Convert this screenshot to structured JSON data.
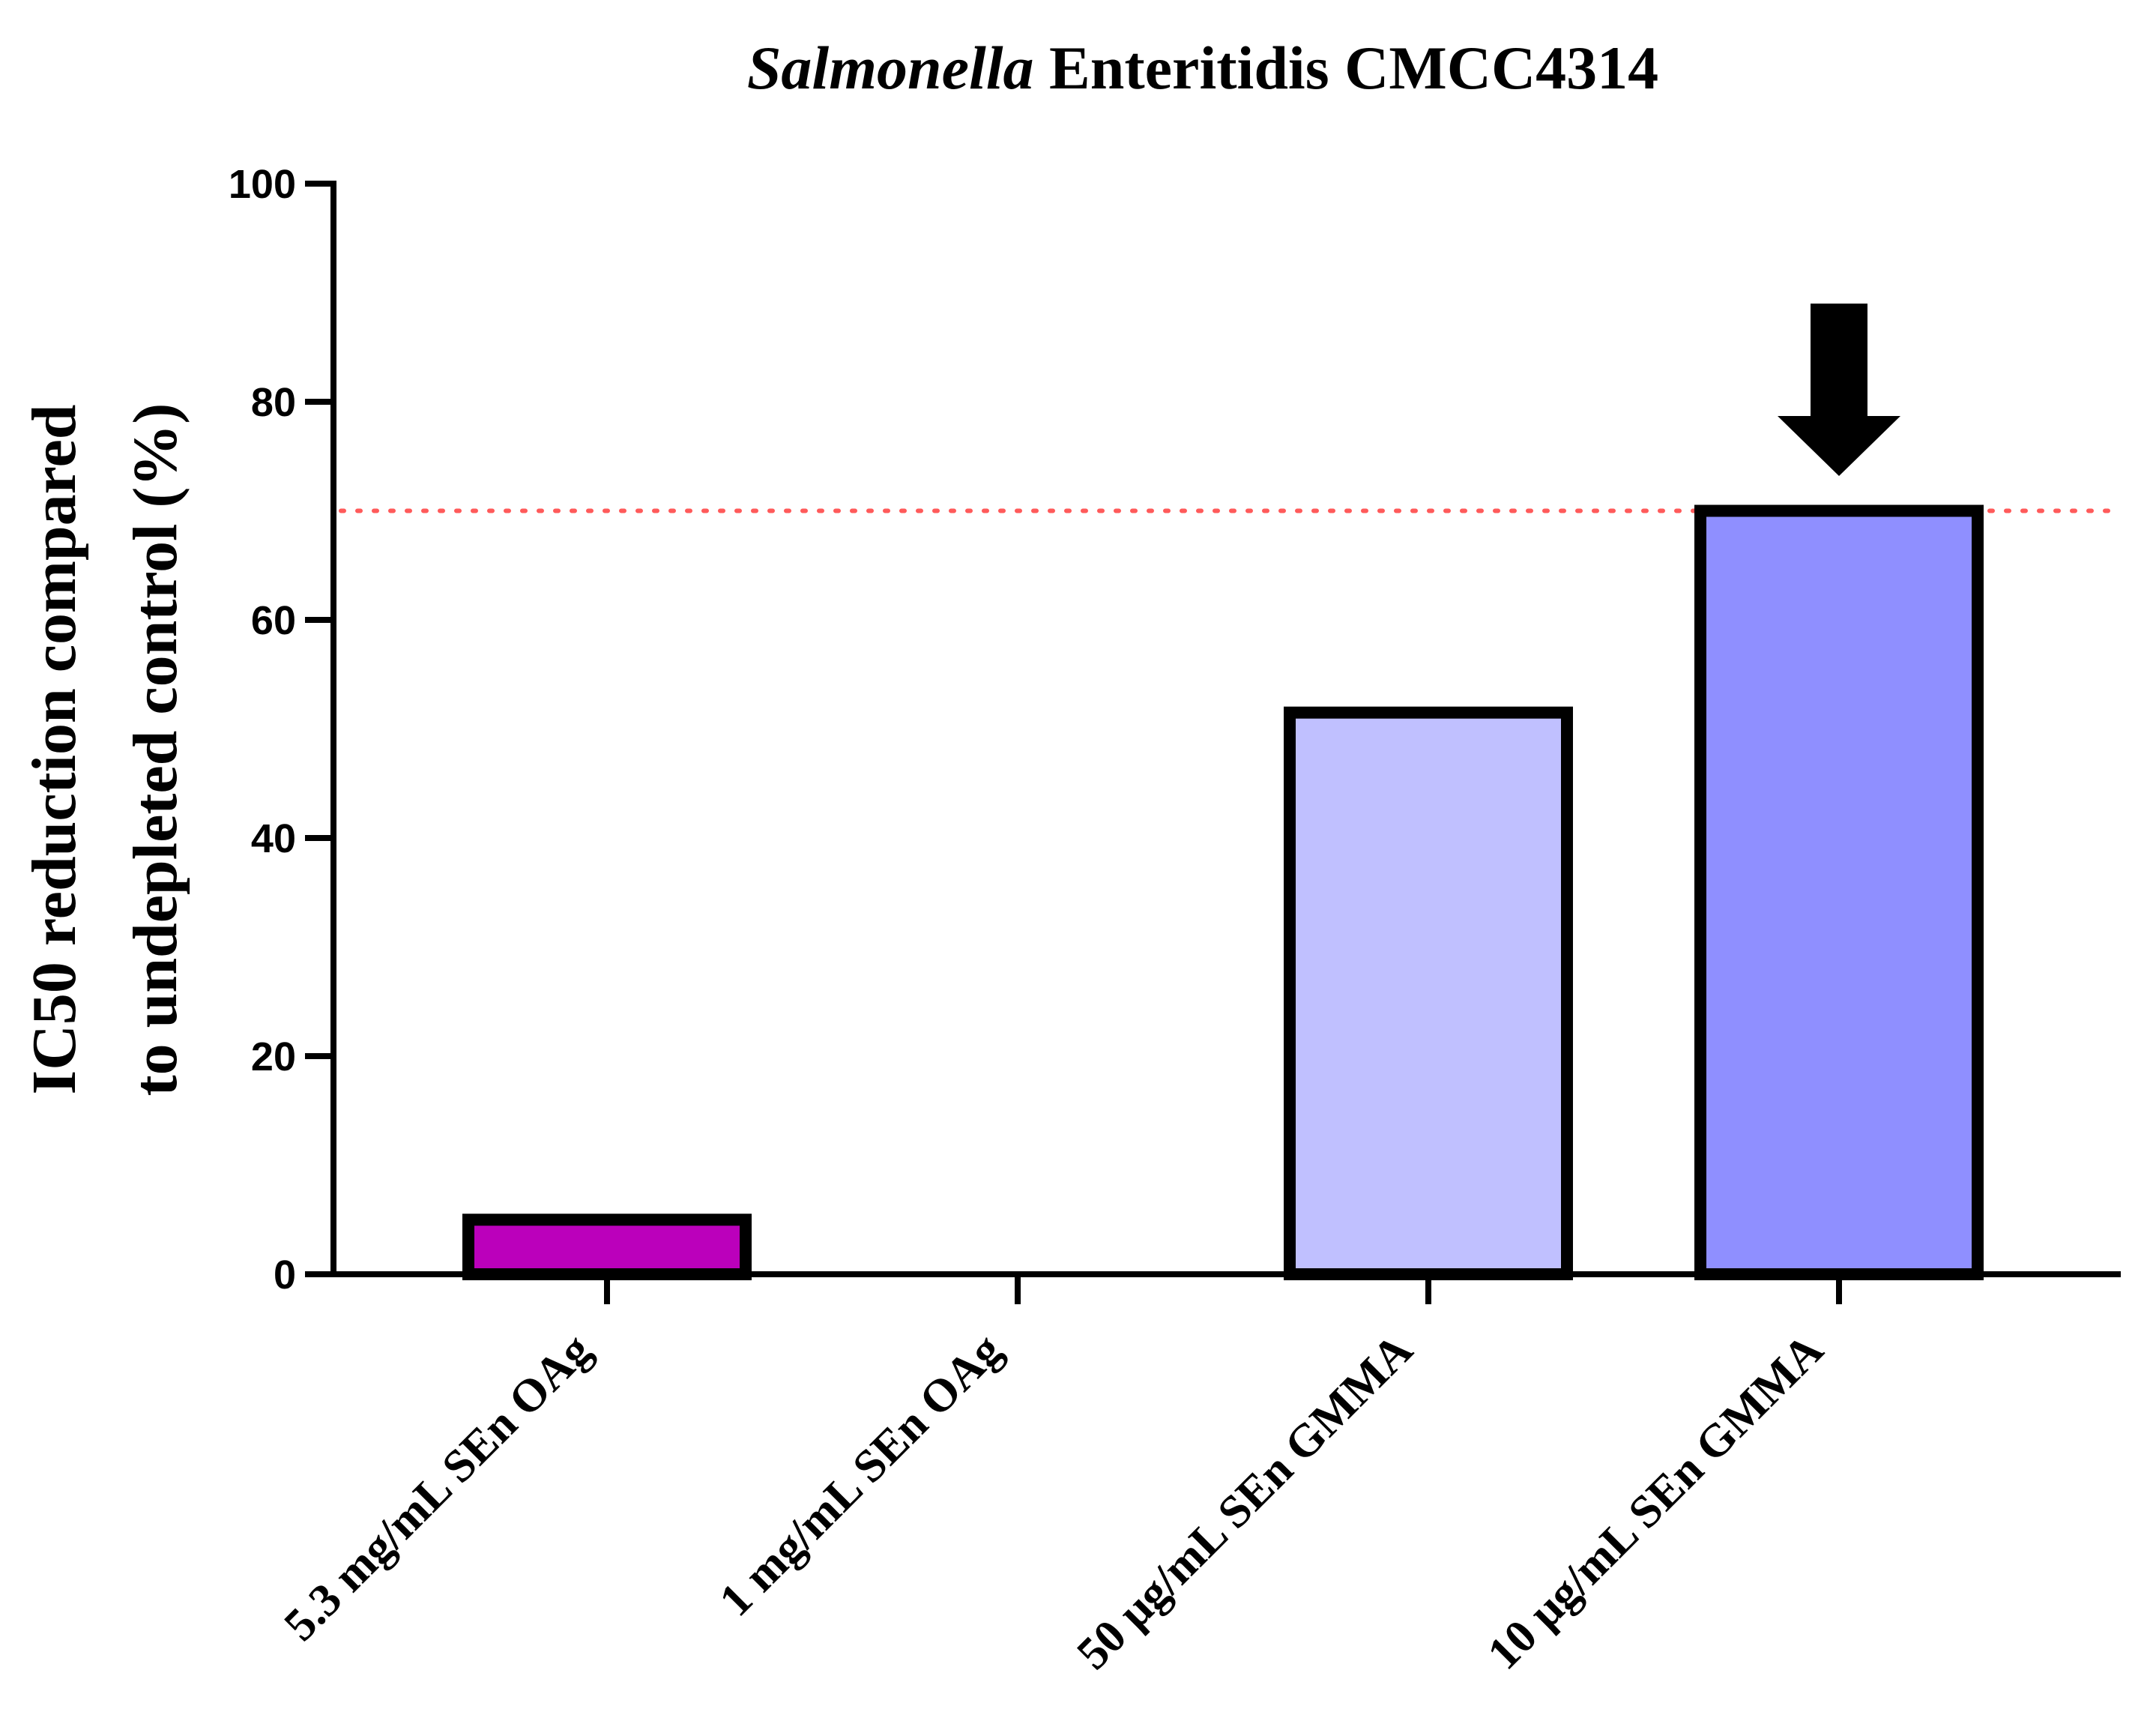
{
  "chart_data": {
    "type": "bar",
    "title": {
      "italic_part": "Salmonella",
      "regular_part": " Enteritidis CMCC4314"
    },
    "ylabel_lines": [
      "IC50 reduction compared",
      "to undepleted control (%)"
    ],
    "xlabel": "",
    "ylim": [
      0,
      100
    ],
    "yticks": [
      0,
      20,
      40,
      60,
      80,
      100
    ],
    "grid": false,
    "categories": [
      "5.3 mg/mL SEn OAg",
      "1 mg/mL SEn OAg",
      "50 μg/mL SEn GMMA",
      "10 μg/mL SEn GMMA"
    ],
    "values": [
      5,
      0,
      51.5,
      70
    ],
    "bar_colors": [
      "#bb00bb",
      "#bb00bb",
      "#c0c0ff",
      "#8f8fff"
    ],
    "reference_line": {
      "value": 70,
      "color": "#ff5a5a",
      "style": "dotted"
    },
    "marker": {
      "type": "down-arrow",
      "category_index": 3,
      "color": "#000000"
    }
  }
}
